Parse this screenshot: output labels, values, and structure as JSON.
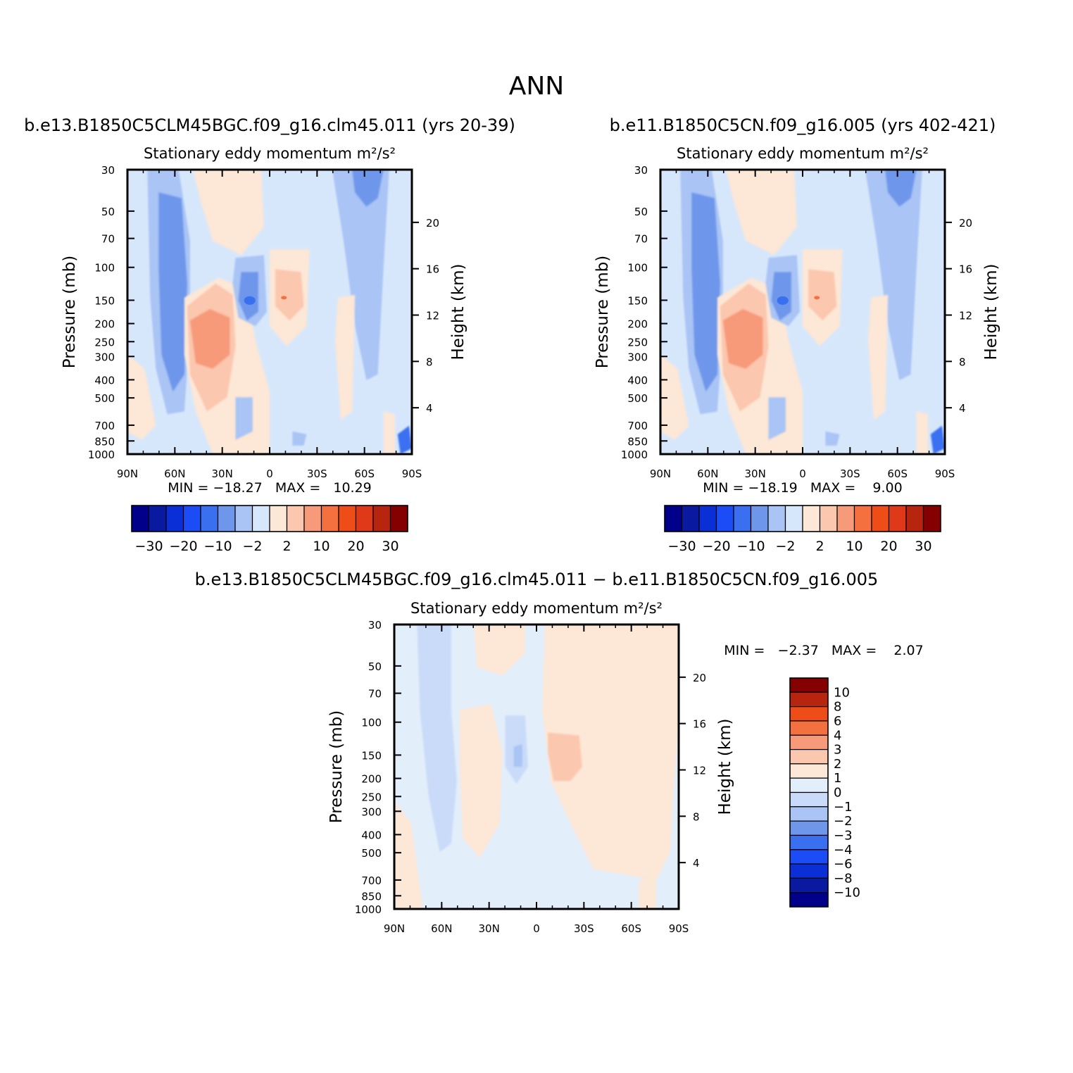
{
  "figure": {
    "title": "ANN",
    "colors": {
      "main_scale": [
        "#00008b",
        "#0a1aa0",
        "#0b2fd6",
        "#1b4cf5",
        "#3a70f0",
        "#6e96ea",
        "#a9c4f5",
        "#d7e7fb",
        "#fde7d6",
        "#fbc7ae",
        "#f79a7a",
        "#f4703f",
        "#ee4d17",
        "#e0391a",
        "#b8250e",
        "#850000"
      ],
      "diff_scale": [
        "#00008b",
        "#0a1aa0",
        "#0b2fd6",
        "#1b4cf5",
        "#3a70f0",
        "#6e96ea",
        "#a9c4f5",
        "#c9dbf8",
        "#e3eefb",
        "#fde7d6",
        "#fbc7ae",
        "#f79a7a",
        "#f4703f",
        "#ee4d17",
        "#b8250e",
        "#850000"
      ]
    }
  },
  "chart_data": [
    {
      "type": "heatmap",
      "title": "b.e13.B1850C5CLM45BGC.f09_g16.clm45.011 (yrs 20-39)",
      "subtitle": "Stationary eddy momentum",
      "units": "m²/s²",
      "xlabel": "",
      "ylabel": "Pressure (mb)",
      "y2label": "Height (km)",
      "x_ticks": [
        "90N",
        "60N",
        "30N",
        "0",
        "30S",
        "60S",
        "90S"
      ],
      "y_ticks": [
        "30",
        "50",
        "70",
        "100",
        "150",
        "200",
        "250",
        "300",
        "400",
        "500",
        "700",
        "850",
        "1000"
      ],
      "y2_ticks": [
        "20",
        "16",
        "12",
        "8",
        "4"
      ],
      "stats_text": "MIN = −18.27   MAX =   10.29",
      "min": -18.27,
      "max": 10.29,
      "colorbar_labels": [
        "−30",
        "−20",
        "−10",
        "−2",
        "2",
        "10",
        "20",
        "30"
      ]
    },
    {
      "type": "heatmap",
      "title": "b.e11.B1850C5CN.f09_g16.005 (yrs 402-421)",
      "subtitle": "Stationary eddy momentum",
      "units": "m²/s²",
      "xlabel": "",
      "ylabel": "Pressure (mb)",
      "y2label": "Height (km)",
      "x_ticks": [
        "90N",
        "60N",
        "30N",
        "0",
        "30S",
        "60S",
        "90S"
      ],
      "y_ticks": [
        "30",
        "50",
        "70",
        "100",
        "150",
        "200",
        "250",
        "300",
        "400",
        "500",
        "700",
        "850",
        "1000"
      ],
      "y2_ticks": [
        "20",
        "16",
        "12",
        "8",
        "4"
      ],
      "stats_text": "MIN = −18.19   MAX =    9.00",
      "min": -18.19,
      "max": 9.0,
      "colorbar_labels": [
        "−30",
        "−20",
        "−10",
        "−2",
        "2",
        "10",
        "20",
        "30"
      ]
    },
    {
      "type": "heatmap",
      "title": "b.e13.B1850C5CLM45BGC.f09_g16.clm45.011 − b.e11.B1850C5CN.f09_g16.005",
      "subtitle": "Stationary eddy momentum",
      "units": "m²/s²",
      "xlabel": "",
      "ylabel": "Pressure (mb)",
      "y2label": "Height (km)",
      "x_ticks": [
        "90N",
        "60N",
        "30N",
        "0",
        "30S",
        "60S",
        "90S"
      ],
      "y_ticks": [
        "30",
        "50",
        "70",
        "100",
        "150",
        "200",
        "250",
        "300",
        "400",
        "500",
        "700",
        "850",
        "1000"
      ],
      "y2_ticks": [
        "20",
        "16",
        "12",
        "8",
        "4"
      ],
      "stats_text": "MIN =   −2.37   MAX =    2.07",
      "min": -2.37,
      "max": 2.07,
      "colorbar_labels": [
        "10",
        "8",
        "6",
        "4",
        "3",
        "2",
        "1",
        "0",
        "−1",
        "−2",
        "−3",
        "−4",
        "−6",
        "−8",
        "−10"
      ]
    }
  ]
}
